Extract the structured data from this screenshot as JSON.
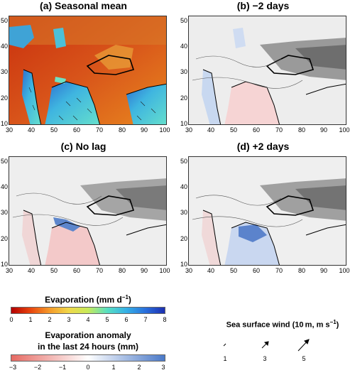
{
  "panels": [
    {
      "title": "(a) Seasonal mean",
      "mode": "mean"
    },
    {
      "title": "(b) −2 days",
      "mode": "lag-2"
    },
    {
      "title": "(c) No lag",
      "mode": "lag0"
    },
    {
      "title": "(d) +2 days",
      "mode": "lag+2"
    }
  ],
  "axes": {
    "lat_ticks": [
      "50",
      "40",
      "30",
      "20",
      "10"
    ],
    "lon_ticks": [
      "30",
      "40",
      "50",
      "60",
      "70",
      "80",
      "90",
      "100"
    ]
  },
  "legend_evap": {
    "title": "Evaporation (mm d",
    "title_sup": "−1",
    "title_end": ")",
    "ticks": [
      "0",
      "1",
      "2",
      "3",
      "4",
      "5",
      "6",
      "7",
      "8"
    ],
    "colors": [
      "#b30000",
      "#e8450e",
      "#f59b2a",
      "#f0d84a",
      "#c7ea5a",
      "#58dfc2",
      "#35b0e6",
      "#2a6fdc",
      "#1c2fb0"
    ]
  },
  "legend_anom": {
    "title_line1": "Evaporation anomaly",
    "title_line2": "in the last 24 hours (mm)",
    "ticks": [
      "−3",
      "−2",
      "−1",
      "0",
      "1",
      "2",
      "3"
    ],
    "colors": [
      "#e66a63",
      "#ffffff",
      "#4a79c8"
    ]
  },
  "wind_key": {
    "title": "Sea surface wind (10 m, m s",
    "title_sup": "−1",
    "title_end": ")",
    "labels": [
      "1",
      "3",
      "5"
    ]
  }
}
